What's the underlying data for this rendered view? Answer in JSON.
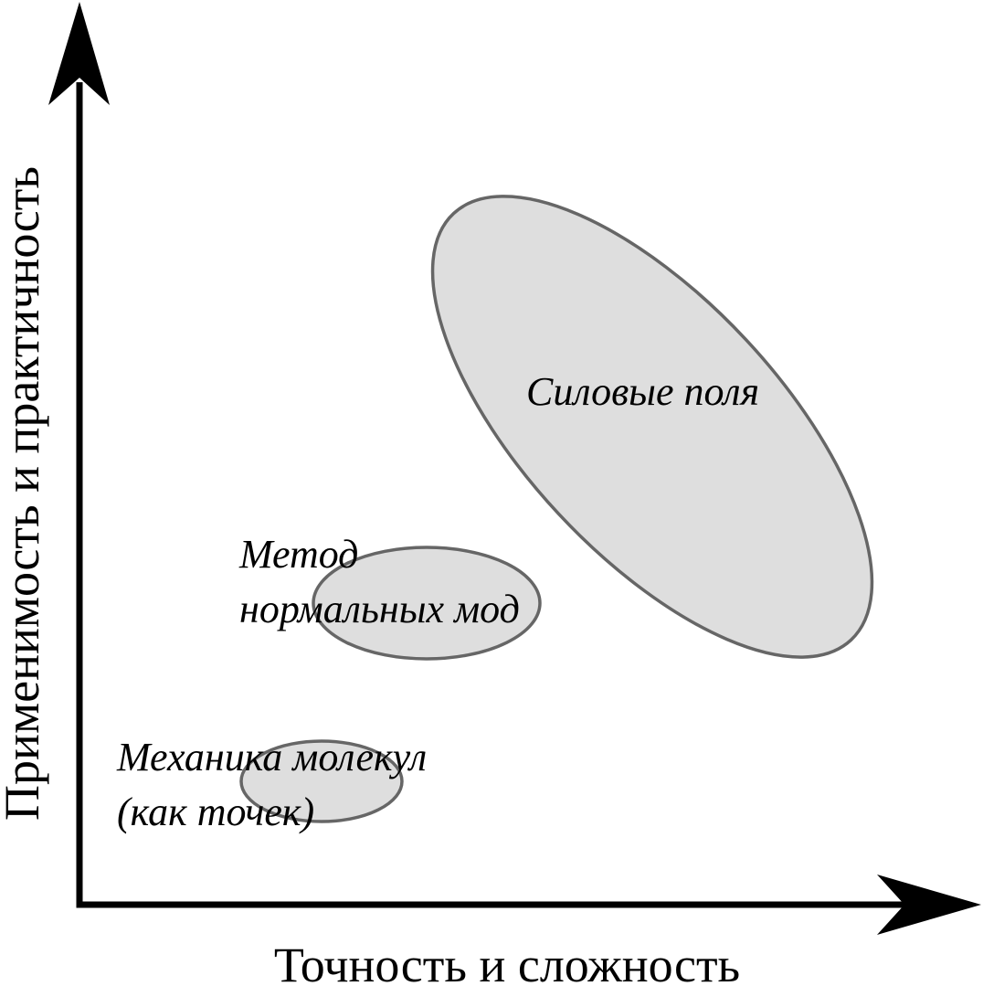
{
  "axes": {
    "x_label": "Точность и сложность",
    "y_label": "Применимость и практичность"
  },
  "regions": [
    {
      "id": "force-fields",
      "lines": [
        "Силовые поля"
      ]
    },
    {
      "id": "normal-modes",
      "lines": [
        "Метод",
        "нормальных мод"
      ]
    },
    {
      "id": "molecular-mechanics",
      "lines": [
        "Механика молекул",
        "(как точек)"
      ]
    }
  ],
  "colors": {
    "region_fill": "#dedede",
    "region_stroke": "#666666",
    "axis": "#000000"
  }
}
